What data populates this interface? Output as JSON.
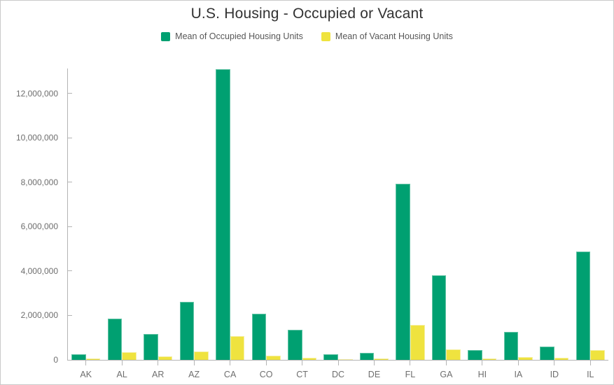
{
  "window": {
    "background": "#ffffff",
    "border_color": "#c9c9c9"
  },
  "chart_data": {
    "type": "bar",
    "title": "U.S. Housing - Occupied or Vacant",
    "xlabel": "",
    "ylabel": "",
    "grid": false,
    "legend_position": "top-center",
    "categories": [
      "AK",
      "AL",
      "AR",
      "AZ",
      "CA",
      "CO",
      "CT",
      "DC",
      "DE",
      "FL",
      "GA",
      "HI",
      "IA",
      "ID",
      "IL"
    ],
    "series": [
      {
        "name": "Mean of Occupied Housing Units",
        "color": "#00a071",
        "border_color": "#63c4a6",
        "values": [
          240000,
          1850000,
          1150000,
          2620000,
          13100000,
          2080000,
          1350000,
          250000,
          330000,
          7930000,
          3810000,
          440000,
          1260000,
          610000,
          4870000
        ]
      },
      {
        "name": "Mean of Vacant Housing Units",
        "color": "#efe33f",
        "border_color": "#f5efa3",
        "values": [
          55000,
          350000,
          170000,
          365000,
          1070000,
          185000,
          110000,
          30000,
          60000,
          1580000,
          465000,
          70000,
          120000,
          90000,
          450000
        ]
      }
    ],
    "ylim": [
      0,
      13130000
    ],
    "yticks": [
      0,
      2000000,
      4000000,
      6000000,
      8000000,
      10000000,
      12000000
    ],
    "axis_color": "#b4b4b4",
    "tick_label_color": "#6e6e6e",
    "title_color": "#323232",
    "legend_text_color": "#575757"
  }
}
